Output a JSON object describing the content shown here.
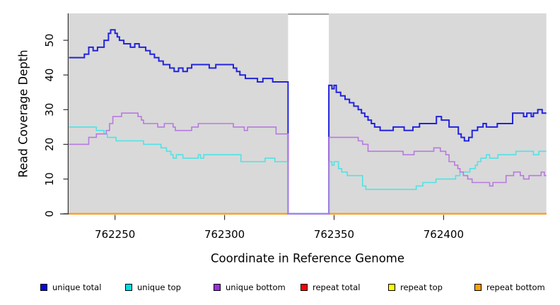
{
  "chart_data": {
    "type": "line",
    "line_style": "step",
    "title": "",
    "xlabel": "Coordinate in Reference Genome",
    "ylabel": "Read Coverage Depth",
    "xlim": [
      762228.8,
      762446.9
    ],
    "ylim": [
      0,
      57.75
    ],
    "x_ticks": [
      "762250",
      "762300",
      "762350",
      "762400"
    ],
    "x_tick_values": [
      762250,
      762300,
      762350,
      762400
    ],
    "y_ticks": [
      "0",
      "10",
      "20",
      "30",
      "40",
      "50"
    ],
    "y_tick_values": [
      0,
      10,
      20,
      30,
      40,
      50
    ],
    "grid": "off",
    "legend_position": "bottom",
    "panel_bg": "#d9d9d9",
    "axis_color": "#333333",
    "text_color": "#000000",
    "gap_mask": {
      "x_start": 762329,
      "x_end": 762347.6,
      "fill": "#ffffff",
      "border_top_color": "#808080",
      "note": "white rectangle masking region with no data; unique lines drop to 0 at its edges"
    },
    "series": [
      {
        "name": "unique total",
        "color": "#2323dc",
        "legend_fill": "#0008e3",
        "width": 2,
        "steps": [
          [
            762229,
            45
          ],
          [
            762236,
            46
          ],
          [
            762238,
            48
          ],
          [
            762240,
            47
          ],
          [
            762242,
            48
          ],
          [
            762245,
            50
          ],
          [
            762247,
            52
          ],
          [
            762248,
            53
          ],
          [
            762250,
            52
          ],
          [
            762251,
            51
          ],
          [
            762252,
            50
          ],
          [
            762254,
            49
          ],
          [
            762257,
            48
          ],
          [
            762259,
            49
          ],
          [
            762261,
            48
          ],
          [
            762264,
            47
          ],
          [
            762266,
            46
          ],
          [
            762268,
            45
          ],
          [
            762270,
            44
          ],
          [
            762272,
            43
          ],
          [
            762275,
            42
          ],
          [
            762277,
            41
          ],
          [
            762279,
            42
          ],
          [
            762281,
            41
          ],
          [
            762283,
            42
          ],
          [
            762285,
            43
          ],
          [
            762293,
            42
          ],
          [
            762296,
            43
          ],
          [
            762304,
            42
          ],
          [
            762305.5,
            41
          ],
          [
            762307,
            40
          ],
          [
            762309.5,
            39
          ],
          [
            762315,
            38
          ],
          [
            762317.5,
            39
          ],
          [
            762322,
            38
          ],
          [
            762329,
            0
          ],
          [
            762347.6,
            37
          ],
          [
            762349,
            36
          ],
          [
            762350,
            37
          ],
          [
            762351,
            35
          ],
          [
            762353,
            34
          ],
          [
            762355,
            33
          ],
          [
            762357,
            32
          ],
          [
            762359,
            31
          ],
          [
            762361,
            30
          ],
          [
            762362.5,
            29
          ],
          [
            762364,
            28
          ],
          [
            762365.5,
            27
          ],
          [
            762367,
            26
          ],
          [
            762368.5,
            25
          ],
          [
            762371,
            24
          ],
          [
            762377,
            25
          ],
          [
            762382,
            24
          ],
          [
            762386,
            25
          ],
          [
            762389,
            26
          ],
          [
            762396.7,
            28
          ],
          [
            762399,
            27
          ],
          [
            762402.5,
            25
          ],
          [
            762406.7,
            23
          ],
          [
            762408,
            22
          ],
          [
            762409.5,
            21
          ],
          [
            762411.5,
            22
          ],
          [
            762413,
            24
          ],
          [
            762415.5,
            25
          ],
          [
            762418,
            26
          ],
          [
            762419.5,
            25
          ],
          [
            762424.5,
            26
          ],
          [
            762431.5,
            29
          ],
          [
            762436.5,
            28
          ],
          [
            762438,
            29
          ],
          [
            762440,
            28
          ],
          [
            762441,
            29
          ],
          [
            762443,
            30
          ],
          [
            762445,
            29
          ]
        ]
      },
      {
        "name": "unique top",
        "color": "#4fe3e6",
        "legend_fill": "#00dfe8",
        "width": 1.6,
        "steps": [
          [
            762229,
            25
          ],
          [
            762241.5,
            24
          ],
          [
            762245,
            23
          ],
          [
            762246.5,
            22
          ],
          [
            762250.5,
            21
          ],
          [
            762263,
            20
          ],
          [
            762271,
            19
          ],
          [
            762273.5,
            18
          ],
          [
            762275.5,
            17
          ],
          [
            762276.5,
            16
          ],
          [
            762278,
            17
          ],
          [
            762281,
            16
          ],
          [
            762288,
            17
          ],
          [
            762289,
            16
          ],
          [
            762290.5,
            17
          ],
          [
            762307.5,
            15
          ],
          [
            762318.5,
            16
          ],
          [
            762323,
            15
          ],
          [
            762329,
            0
          ],
          [
            762347.6,
            15
          ],
          [
            762349,
            14
          ],
          [
            762350,
            15
          ],
          [
            762352,
            13
          ],
          [
            762353.5,
            12
          ],
          [
            762356,
            11
          ],
          [
            762363,
            8
          ],
          [
            762364.5,
            7
          ],
          [
            762387.5,
            8
          ],
          [
            762390.5,
            9
          ],
          [
            762396.5,
            10
          ],
          [
            762405.5,
            11
          ],
          [
            762407.5,
            12
          ],
          [
            762412,
            13
          ],
          [
            762414.5,
            14
          ],
          [
            762415.5,
            15
          ],
          [
            762417,
            16
          ],
          [
            762419.5,
            17
          ],
          [
            762421,
            16
          ],
          [
            762424.8,
            17
          ],
          [
            762433,
            18
          ],
          [
            762441,
            17
          ],
          [
            762443.5,
            18
          ]
        ]
      },
      {
        "name": "unique bottom",
        "color": "#b87ade",
        "legend_fill": "#9a30e0",
        "width": 1.6,
        "steps": [
          [
            762229,
            20
          ],
          [
            762238,
            22
          ],
          [
            762241.5,
            23
          ],
          [
            762246,
            24
          ],
          [
            762247.5,
            26
          ],
          [
            762249,
            28
          ],
          [
            762253,
            29
          ],
          [
            762260.5,
            28
          ],
          [
            762262,
            27
          ],
          [
            762263,
            26
          ],
          [
            762269.5,
            25
          ],
          [
            762272.5,
            26
          ],
          [
            762276.5,
            25
          ],
          [
            762277.5,
            24
          ],
          [
            762285,
            25
          ],
          [
            762288,
            26
          ],
          [
            762304,
            25
          ],
          [
            762309,
            24
          ],
          [
            762310.5,
            25
          ],
          [
            762323.5,
            23
          ],
          [
            762329,
            0
          ],
          [
            762347.6,
            22
          ],
          [
            762361,
            21
          ],
          [
            762363,
            20
          ],
          [
            762365.5,
            18
          ],
          [
            762381.5,
            17
          ],
          [
            762386.5,
            18
          ],
          [
            762395.5,
            19
          ],
          [
            762398.5,
            18
          ],
          [
            762401,
            17
          ],
          [
            762402.5,
            15
          ],
          [
            762405,
            14
          ],
          [
            762406.5,
            13
          ],
          [
            762407.5,
            12
          ],
          [
            762409,
            11
          ],
          [
            762411,
            10
          ],
          [
            762413,
            9
          ],
          [
            762421,
            8
          ],
          [
            762422.5,
            9
          ],
          [
            762428.5,
            11
          ],
          [
            762432,
            12
          ],
          [
            762435,
            11
          ],
          [
            762436.5,
            10
          ],
          [
            762439,
            11
          ],
          [
            762444.5,
            12
          ],
          [
            762446,
            11
          ]
        ]
      },
      {
        "name": "repeat total",
        "color": "#e60000",
        "legend_fill": "#ff0000",
        "width": 2,
        "steps": [
          [
            762229,
            0
          ]
        ]
      },
      {
        "name": "repeat top",
        "color": "#f2f200",
        "legend_fill": "#ffff00",
        "width": 2,
        "steps": [
          [
            762229,
            0
          ]
        ]
      },
      {
        "name": "repeat bottom",
        "color": "#ff9f2a",
        "legend_fill": "#ffa200",
        "width": 2,
        "steps": [
          [
            762229,
            0
          ]
        ]
      }
    ]
  },
  "legend": {
    "item_lefts": [
      57,
      177,
      302,
      425,
      549,
      671
    ]
  }
}
